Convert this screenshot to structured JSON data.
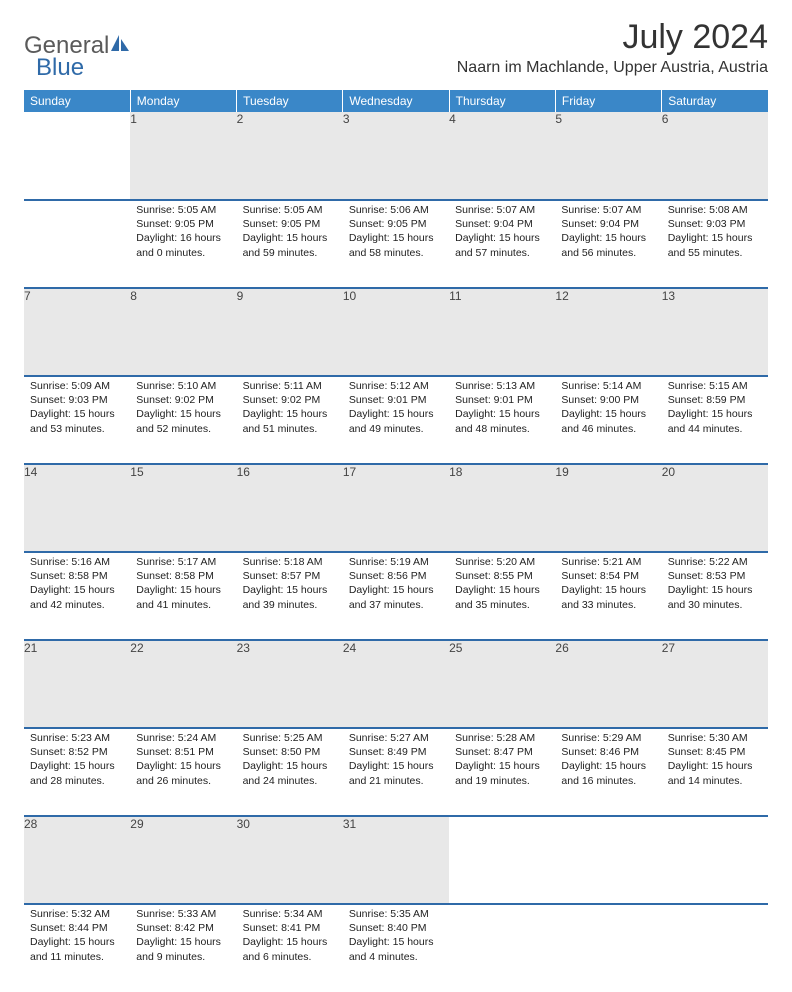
{
  "logo": {
    "general": "General",
    "blue": "Blue"
  },
  "title": "July 2024",
  "location": "Naarn im Machlande, Upper Austria, Austria",
  "colors": {
    "header_bg": "#3a87c8",
    "header_text": "#ffffff",
    "border": "#2f6aa8",
    "daynum_bg": "#e8e8e8",
    "text": "#1a1a1a",
    "logo_gray": "#5a5a5a",
    "logo_blue": "#2f6aa8"
  },
  "day_headers": [
    "Sunday",
    "Monday",
    "Tuesday",
    "Wednesday",
    "Thursday",
    "Friday",
    "Saturday"
  ],
  "weeks": [
    {
      "nums": [
        "",
        "1",
        "2",
        "3",
        "4",
        "5",
        "6"
      ],
      "cells": [
        null,
        {
          "sr": "Sunrise: 5:05 AM",
          "ss": "Sunset: 9:05 PM",
          "dl": "Daylight: 16 hours and 0 minutes."
        },
        {
          "sr": "Sunrise: 5:05 AM",
          "ss": "Sunset: 9:05 PM",
          "dl": "Daylight: 15 hours and 59 minutes."
        },
        {
          "sr": "Sunrise: 5:06 AM",
          "ss": "Sunset: 9:05 PM",
          "dl": "Daylight: 15 hours and 58 minutes."
        },
        {
          "sr": "Sunrise: 5:07 AM",
          "ss": "Sunset: 9:04 PM",
          "dl": "Daylight: 15 hours and 57 minutes."
        },
        {
          "sr": "Sunrise: 5:07 AM",
          "ss": "Sunset: 9:04 PM",
          "dl": "Daylight: 15 hours and 56 minutes."
        },
        {
          "sr": "Sunrise: 5:08 AM",
          "ss": "Sunset: 9:03 PM",
          "dl": "Daylight: 15 hours and 55 minutes."
        }
      ]
    },
    {
      "nums": [
        "7",
        "8",
        "9",
        "10",
        "11",
        "12",
        "13"
      ],
      "cells": [
        {
          "sr": "Sunrise: 5:09 AM",
          "ss": "Sunset: 9:03 PM",
          "dl": "Daylight: 15 hours and 53 minutes."
        },
        {
          "sr": "Sunrise: 5:10 AM",
          "ss": "Sunset: 9:02 PM",
          "dl": "Daylight: 15 hours and 52 minutes."
        },
        {
          "sr": "Sunrise: 5:11 AM",
          "ss": "Sunset: 9:02 PM",
          "dl": "Daylight: 15 hours and 51 minutes."
        },
        {
          "sr": "Sunrise: 5:12 AM",
          "ss": "Sunset: 9:01 PM",
          "dl": "Daylight: 15 hours and 49 minutes."
        },
        {
          "sr": "Sunrise: 5:13 AM",
          "ss": "Sunset: 9:01 PM",
          "dl": "Daylight: 15 hours and 48 minutes."
        },
        {
          "sr": "Sunrise: 5:14 AM",
          "ss": "Sunset: 9:00 PM",
          "dl": "Daylight: 15 hours and 46 minutes."
        },
        {
          "sr": "Sunrise: 5:15 AM",
          "ss": "Sunset: 8:59 PM",
          "dl": "Daylight: 15 hours and 44 minutes."
        }
      ]
    },
    {
      "nums": [
        "14",
        "15",
        "16",
        "17",
        "18",
        "19",
        "20"
      ],
      "cells": [
        {
          "sr": "Sunrise: 5:16 AM",
          "ss": "Sunset: 8:58 PM",
          "dl": "Daylight: 15 hours and 42 minutes."
        },
        {
          "sr": "Sunrise: 5:17 AM",
          "ss": "Sunset: 8:58 PM",
          "dl": "Daylight: 15 hours and 41 minutes."
        },
        {
          "sr": "Sunrise: 5:18 AM",
          "ss": "Sunset: 8:57 PM",
          "dl": "Daylight: 15 hours and 39 minutes."
        },
        {
          "sr": "Sunrise: 5:19 AM",
          "ss": "Sunset: 8:56 PM",
          "dl": "Daylight: 15 hours and 37 minutes."
        },
        {
          "sr": "Sunrise: 5:20 AM",
          "ss": "Sunset: 8:55 PM",
          "dl": "Daylight: 15 hours and 35 minutes."
        },
        {
          "sr": "Sunrise: 5:21 AM",
          "ss": "Sunset: 8:54 PM",
          "dl": "Daylight: 15 hours and 33 minutes."
        },
        {
          "sr": "Sunrise: 5:22 AM",
          "ss": "Sunset: 8:53 PM",
          "dl": "Daylight: 15 hours and 30 minutes."
        }
      ]
    },
    {
      "nums": [
        "21",
        "22",
        "23",
        "24",
        "25",
        "26",
        "27"
      ],
      "cells": [
        {
          "sr": "Sunrise: 5:23 AM",
          "ss": "Sunset: 8:52 PM",
          "dl": "Daylight: 15 hours and 28 minutes."
        },
        {
          "sr": "Sunrise: 5:24 AM",
          "ss": "Sunset: 8:51 PM",
          "dl": "Daylight: 15 hours and 26 minutes."
        },
        {
          "sr": "Sunrise: 5:25 AM",
          "ss": "Sunset: 8:50 PM",
          "dl": "Daylight: 15 hours and 24 minutes."
        },
        {
          "sr": "Sunrise: 5:27 AM",
          "ss": "Sunset: 8:49 PM",
          "dl": "Daylight: 15 hours and 21 minutes."
        },
        {
          "sr": "Sunrise: 5:28 AM",
          "ss": "Sunset: 8:47 PM",
          "dl": "Daylight: 15 hours and 19 minutes."
        },
        {
          "sr": "Sunrise: 5:29 AM",
          "ss": "Sunset: 8:46 PM",
          "dl": "Daylight: 15 hours and 16 minutes."
        },
        {
          "sr": "Sunrise: 5:30 AM",
          "ss": "Sunset: 8:45 PM",
          "dl": "Daylight: 15 hours and 14 minutes."
        }
      ]
    },
    {
      "nums": [
        "28",
        "29",
        "30",
        "31",
        "",
        "",
        ""
      ],
      "cells": [
        {
          "sr": "Sunrise: 5:32 AM",
          "ss": "Sunset: 8:44 PM",
          "dl": "Daylight: 15 hours and 11 minutes."
        },
        {
          "sr": "Sunrise: 5:33 AM",
          "ss": "Sunset: 8:42 PM",
          "dl": "Daylight: 15 hours and 9 minutes."
        },
        {
          "sr": "Sunrise: 5:34 AM",
          "ss": "Sunset: 8:41 PM",
          "dl": "Daylight: 15 hours and 6 minutes."
        },
        {
          "sr": "Sunrise: 5:35 AM",
          "ss": "Sunset: 8:40 PM",
          "dl": "Daylight: 15 hours and 4 minutes."
        },
        null,
        null,
        null
      ]
    }
  ]
}
